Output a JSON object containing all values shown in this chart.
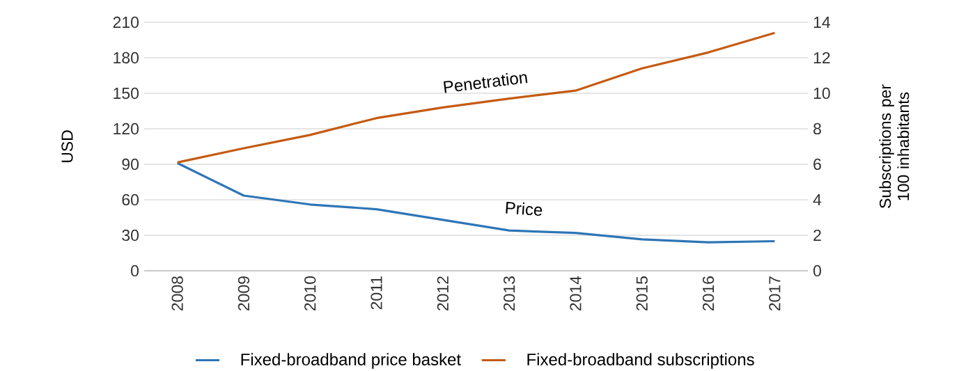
{
  "chart_data": {
    "type": "line",
    "categories": [
      "2008",
      "2009",
      "2010",
      "2011",
      "2012",
      "2013",
      "2014",
      "2015",
      "2016",
      "2017"
    ],
    "series": [
      {
        "name": "Fixed-broadband price basket",
        "color": "#2e75b6",
        "values": [
          91,
          63.5,
          56,
          52,
          43,
          34,
          32,
          26.5,
          24,
          25
        ]
      },
      {
        "name": "Fixed-broadband subscriptions",
        "color": "#c55a11",
        "axis": "y2",
        "values": [
          6.1,
          6.9,
          7.65,
          8.6,
          9.2,
          9.7,
          10.15,
          11.4,
          12.3,
          13.4
        ]
      }
    ],
    "ylabel": "USD",
    "y2label": "Subscriptions per 100 inhabitants",
    "ylim": [
      0,
      210
    ],
    "yticks": [
      0,
      30,
      60,
      90,
      120,
      150,
      180,
      210
    ],
    "y2lim": [
      0,
      14
    ],
    "y2ticks": [
      0,
      2,
      4,
      6,
      8,
      10,
      12,
      14
    ],
    "annotations": [
      "Penetration",
      "Price"
    ],
    "grid": "y",
    "legend": "bottom",
    "marker": "none",
    "line_style": "solid"
  }
}
